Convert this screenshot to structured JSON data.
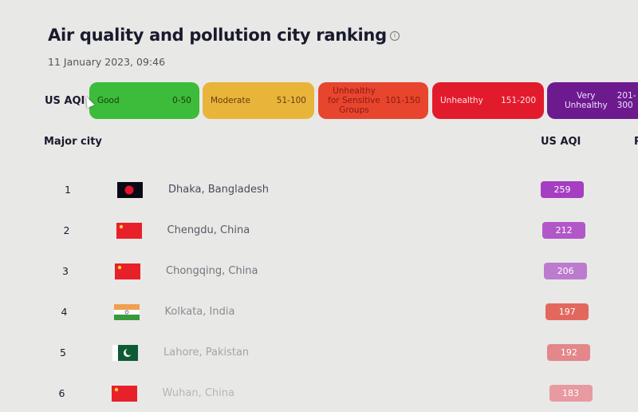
{
  "header": {
    "title": "Air quality and pollution city ranking",
    "date": "11 January 2023, 09:46",
    "info_icon": "info-icon"
  },
  "legend": {
    "label": "US AQI",
    "bands": [
      {
        "name": "Good",
        "range": "0-50",
        "color": "#3cbc3a",
        "text": "#1b3a12"
      },
      {
        "name": "Moderate",
        "range": "51-100",
        "color": "#e8b53a",
        "text": "#6a3a10"
      },
      {
        "name": "Unhealthy for Sensitive Groups",
        "range": "101-150",
        "color": "#e8452e",
        "text": "#8a1a10"
      },
      {
        "name": "Unhealthy",
        "range": "151-200",
        "color": "#e21b2c",
        "text": "#ffe0e0"
      },
      {
        "name": "Very Unhealthy",
        "range": "201-300",
        "color": "#6d1a8e",
        "text": "#f0e0ff"
      }
    ]
  },
  "table": {
    "columns": [
      "Major city",
      "US AQI",
      "P"
    ],
    "rows": [
      {
        "rank": "1",
        "city": "Dhaka, Bangladesh",
        "flag": "bangladesh",
        "aqi": "259",
        "color": "#a53ec0",
        "text_color": "#4a4a5a"
      },
      {
        "rank": "2",
        "city": "Chengdu, China",
        "flag": "china",
        "aqi": "212",
        "color": "#b257c8",
        "text_color": "#5a5a66"
      },
      {
        "rank": "3",
        "city": "Chongqing, China",
        "flag": "china",
        "aqi": "206",
        "color": "#bd7bd0",
        "text_color": "#75757e"
      },
      {
        "rank": "4",
        "city": "Kolkata, India",
        "flag": "india",
        "aqi": "197",
        "color": "#e2685e",
        "text_color": "#8c8c92"
      },
      {
        "rank": "5",
        "city": "Lahore, Pakistan",
        "flag": "pakistan",
        "aqi": "192",
        "color": "#e3878a",
        "text_color": "#a5a5aa"
      },
      {
        "rank": "6",
        "city": "Wuhan, China",
        "flag": "china",
        "aqi": "183",
        "color": "#e79aa0",
        "text_color": "#b5b5b8"
      }
    ]
  }
}
